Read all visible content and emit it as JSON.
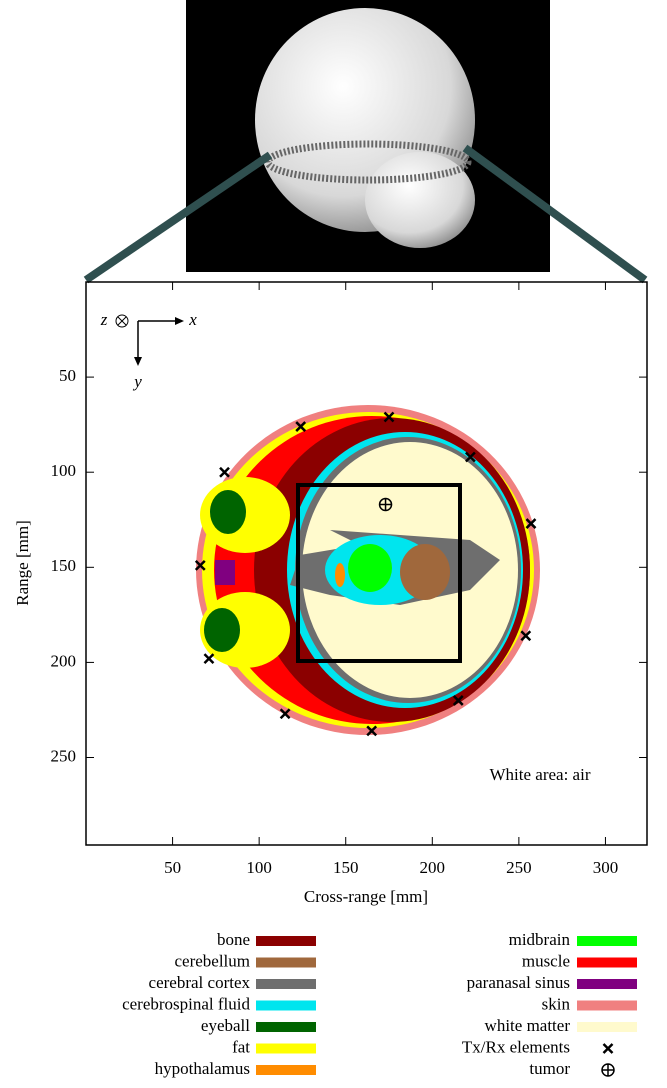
{
  "chart_data": {
    "type": "scatter",
    "x_label": "Cross-range [mm]",
    "y_label": "Range [mm]",
    "xlim": [
      0,
      324
    ],
    "ylim": [
      0,
      296
    ],
    "y_inverted": true,
    "xticks": [
      50,
      100,
      150,
      200,
      250,
      300
    ],
    "yticks": [
      50,
      100,
      150,
      200,
      250
    ],
    "annotations": {
      "air": "White area: air",
      "z": "z",
      "x": "x",
      "y": "y"
    },
    "regions": [
      {
        "name": "bone",
        "color": "#8b0000"
      },
      {
        "name": "cerebellum",
        "color": "#a0683c"
      },
      {
        "name": "cerebral cortex",
        "color": "#6e6e6e"
      },
      {
        "name": "cerebrospinal fluid",
        "color": "#00e5ee"
      },
      {
        "name": "eyeball",
        "color": "#006400"
      },
      {
        "name": "fat",
        "color": "#ffff00"
      },
      {
        "name": "hypothalamus",
        "color": "#ff8c00"
      },
      {
        "name": "midbrain",
        "color": "#00ff00"
      },
      {
        "name": "muscle",
        "color": "#ff0000"
      },
      {
        "name": "paranasal sinus",
        "color": "#800080"
      },
      {
        "name": "skin",
        "color": "#f08080"
      },
      {
        "name": "white matter",
        "color": "#fffacd"
      }
    ],
    "series": [
      {
        "name": "Tx/Rx elements",
        "color": "#000000",
        "marker": "x",
        "x": [
          124,
          175,
          222,
          257,
          254,
          215,
          165,
          115,
          71,
          66,
          80
        ],
        "values": [
          76,
          71,
          92,
          127,
          186,
          220,
          236,
          227,
          198,
          149,
          100
        ]
      },
      {
        "name": "tumor",
        "color": "#000000",
        "marker": "circle-plus",
        "x": [
          173
        ],
        "values": [
          117
        ]
      }
    ]
  }
}
